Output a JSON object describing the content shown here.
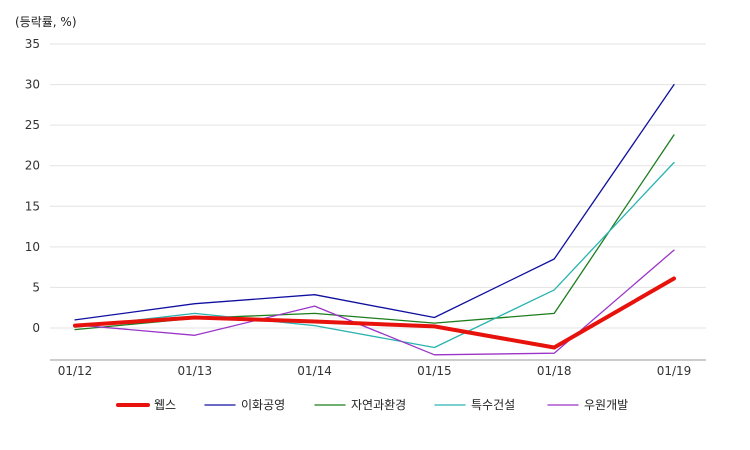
{
  "chart_data": {
    "type": "line",
    "ylabel": "(등락률, %)",
    "categories": [
      "01/12",
      "01/13",
      "01/14",
      "01/15",
      "01/18",
      "01/19"
    ],
    "yticks": [
      0,
      5,
      10,
      15,
      20,
      25,
      30,
      35
    ],
    "ylim": [
      -4,
      35
    ],
    "grid": true,
    "legend_position": "bottom",
    "series": [
      {
        "name": "웹스",
        "color": "#e8120c",
        "width": 4,
        "values": [
          0.3,
          1.3,
          0.8,
          0.2,
          -2.4,
          6.1
        ]
      },
      {
        "name": "이화공영",
        "color": "#1010a0",
        "width": 1.3,
        "values": [
          1.0,
          3.0,
          4.1,
          1.3,
          8.5,
          30.0
        ]
      },
      {
        "name": "자연과환경",
        "color": "#1c7d1c",
        "width": 1.3,
        "values": [
          -0.2,
          1.2,
          1.8,
          0.6,
          1.8,
          23.8
        ]
      },
      {
        "name": "특수건설",
        "color": "#2ab3b0",
        "width": 1.3,
        "values": [
          0.1,
          1.8,
          0.3,
          -2.4,
          4.7,
          20.4
        ]
      },
      {
        "name": "우원개발",
        "color": "#9a35c8",
        "width": 1.3,
        "values": [
          0.4,
          -0.9,
          2.7,
          -3.3,
          -3.1,
          9.6
        ]
      }
    ]
  }
}
